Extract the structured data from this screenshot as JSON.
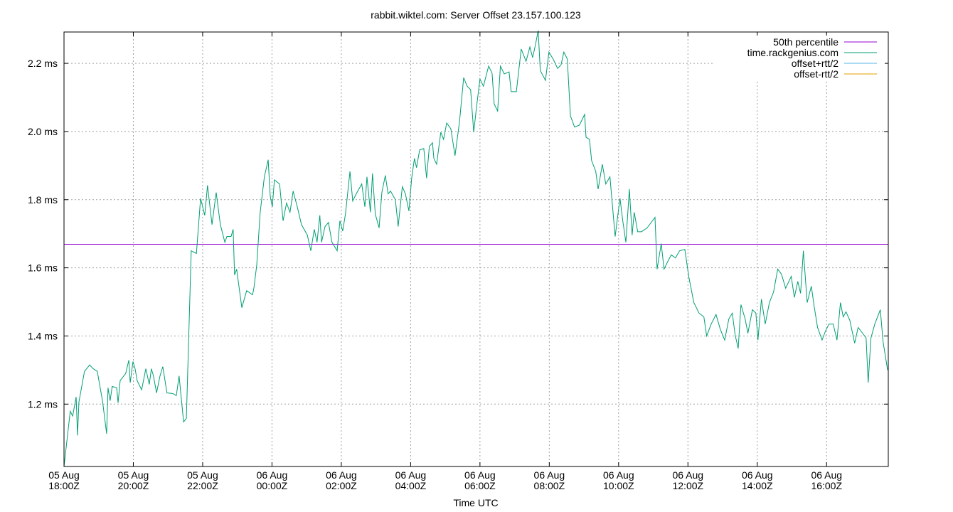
{
  "chart_data": {
    "type": "line",
    "title": "rabbit.wiktel.com: Server Offset 23.157.100.123",
    "xlabel": "Time UTC",
    "xlim": [
      0,
      23.78
    ],
    "ylim": [
      1.017,
      2.292
    ],
    "xticks": [
      {
        "value": 0,
        "label": "05 Aug\n18:00Z"
      },
      {
        "value": 2,
        "label": "05 Aug\n20:00Z"
      },
      {
        "value": 4,
        "label": "05 Aug\n22:00Z"
      },
      {
        "value": 6,
        "label": "06 Aug\n00:00Z"
      },
      {
        "value": 8,
        "label": "06 Aug\n02:00Z"
      },
      {
        "value": 10,
        "label": "06 Aug\n04:00Z"
      },
      {
        "value": 12,
        "label": "06 Aug\n06:00Z"
      },
      {
        "value": 14,
        "label": "06 Aug\n08:00Z"
      },
      {
        "value": 16,
        "label": "06 Aug\n10:00Z"
      },
      {
        "value": 18,
        "label": "06 Aug\n12:00Z"
      },
      {
        "value": 20,
        "label": "06 Aug\n14:00Z"
      },
      {
        "value": 22,
        "label": "06 Aug\n16:00Z"
      }
    ],
    "yticks": [
      {
        "value": 1.2,
        "label": "1.2 ms"
      },
      {
        "value": 1.4,
        "label": "1.4 ms"
      },
      {
        "value": 1.6,
        "label": "1.6 ms"
      },
      {
        "value": 1.8,
        "label": "1.8 ms"
      },
      {
        "value": 2.0,
        "label": "2.0 ms"
      },
      {
        "value": 2.2,
        "label": "2.2 ms"
      }
    ],
    "grid": true,
    "legend": "top-right",
    "percentile": {
      "name": "50th percentile",
      "color": "#9400d3",
      "value": 1.669
    },
    "x": [
      0,
      0.06,
      0.18,
      0.25,
      0.35,
      0.39,
      0.43,
      0.59,
      0.74,
      0.84,
      0.96,
      1.11,
      1.23,
      1.27,
      1.33,
      1.39,
      1.52,
      1.56,
      1.62,
      1.78,
      1.87,
      1.91,
      1.99,
      2.05,
      2.11,
      2.24,
      2.36,
      2.46,
      2.52,
      2.58,
      2.67,
      2.77,
      2.85,
      2.97,
      3.14,
      3.24,
      3.32,
      3.45,
      3.53,
      3.67,
      3.82,
      3.94,
      4.06,
      4.14,
      4.27,
      4.39,
      4.51,
      4.64,
      4.7,
      4.82,
      4.88,
      4.92,
      4.98,
      5.13,
      5.27,
      5.44,
      5.48,
      5.56,
      5.66,
      5.78,
      5.89,
      5.95,
      6.01,
      6.07,
      6.22,
      6.32,
      6.42,
      6.52,
      6.61,
      6.73,
      6.85,
      7.02,
      7.12,
      7.22,
      7.3,
      7.38,
      7.43,
      7.53,
      7.63,
      7.73,
      7.88,
      7.96,
      8.04,
      8.12,
      8.25,
      8.33,
      8.43,
      8.59,
      8.68,
      8.74,
      8.84,
      8.9,
      8.98,
      9.09,
      9.17,
      9.27,
      9.35,
      9.42,
      9.56,
      9.64,
      9.76,
      9.85,
      9.95,
      10.03,
      10.11,
      10.17,
      10.26,
      10.38,
      10.46,
      10.54,
      10.63,
      10.67,
      10.75,
      10.87,
      10.95,
      11.04,
      11.16,
      11.28,
      11.41,
      11.53,
      11.63,
      11.73,
      11.82,
      11.9,
      12.0,
      12.1,
      12.25,
      12.35,
      12.41,
      12.51,
      12.59,
      12.7,
      12.84,
      12.9,
      13.05,
      13.19,
      13.33,
      13.44,
      13.52,
      13.6,
      13.68,
      13.74,
      13.89,
      13.99,
      14.11,
      14.24,
      14.34,
      14.42,
      14.52,
      14.61,
      14.73,
      14.87,
      15.02,
      15.06,
      15.16,
      15.22,
      15.34,
      15.41,
      15.53,
      15.63,
      15.75,
      15.9,
      16.04,
      16.12,
      16.21,
      16.31,
      16.39,
      16.45,
      16.55,
      16.66,
      16.82,
      16.94,
      17.05,
      17.11,
      17.23,
      17.31,
      17.44,
      17.52,
      17.64,
      17.76,
      17.91,
      18.03,
      18.17,
      18.32,
      18.46,
      18.54,
      18.67,
      18.81,
      18.93,
      19.06,
      19.18,
      19.28,
      19.36,
      19.45,
      19.53,
      19.65,
      19.73,
      19.86,
      19.96,
      20.02,
      20.12,
      20.23,
      20.35,
      20.47,
      20.59,
      20.7,
      20.82,
      20.98,
      21.07,
      21.17,
      21.25,
      21.33,
      21.44,
      21.56,
      21.64,
      21.74,
      21.87,
      21.97,
      22.07,
      22.19,
      22.3,
      22.4,
      22.48,
      22.56,
      22.67,
      22.81,
      22.91,
      23.04,
      23.14,
      23.2,
      23.28,
      23.39,
      23.55,
      23.63,
      23.76
    ],
    "series": [
      {
        "name": "time.rackgenius.com",
        "color": "#009e73",
        "values": [
          1.017,
          1.071,
          1.179,
          1.165,
          1.221,
          1.108,
          1.206,
          1.296,
          1.315,
          1.304,
          1.296,
          1.21,
          1.113,
          1.248,
          1.21,
          1.252,
          1.248,
          1.204,
          1.269,
          1.29,
          1.329,
          1.263,
          1.325,
          1.304,
          1.269,
          1.242,
          1.304,
          1.258,
          1.304,
          1.283,
          1.233,
          1.283,
          1.31,
          1.233,
          1.231,
          1.225,
          1.283,
          1.148,
          1.158,
          1.65,
          1.642,
          1.804,
          1.754,
          1.842,
          1.727,
          1.821,
          1.727,
          1.675,
          1.692,
          1.692,
          1.713,
          1.579,
          1.596,
          1.483,
          1.533,
          1.521,
          1.542,
          1.608,
          1.763,
          1.867,
          1.917,
          1.81,
          1.779,
          1.858,
          1.846,
          1.738,
          1.79,
          1.763,
          1.825,
          1.779,
          1.727,
          1.696,
          1.65,
          1.713,
          1.675,
          1.754,
          1.675,
          1.721,
          1.733,
          1.675,
          1.65,
          1.738,
          1.708,
          1.758,
          1.883,
          1.796,
          1.817,
          1.846,
          1.779,
          1.867,
          1.763,
          1.877,
          1.758,
          1.717,
          1.821,
          1.871,
          1.817,
          1.825,
          1.8,
          1.721,
          1.838,
          1.817,
          1.767,
          1.863,
          1.921,
          1.894,
          1.946,
          1.95,
          1.863,
          1.956,
          1.967,
          1.921,
          1.904,
          1.998,
          1.977,
          2.025,
          2.008,
          1.929,
          2.029,
          2.158,
          2.133,
          2.123,
          1.998,
          2.071,
          2.154,
          2.133,
          2.192,
          2.171,
          2.081,
          2.06,
          2.192,
          2.169,
          2.175,
          2.117,
          2.117,
          2.242,
          2.206,
          2.248,
          2.217,
          2.254,
          2.296,
          2.179,
          2.15,
          2.233,
          2.213,
          2.185,
          2.196,
          2.233,
          2.213,
          2.046,
          2.013,
          2.019,
          2.05,
          1.983,
          1.977,
          1.915,
          1.883,
          1.831,
          1.904,
          1.846,
          1.867,
          1.692,
          1.804,
          1.738,
          1.675,
          1.831,
          1.696,
          1.763,
          1.706,
          1.706,
          1.717,
          1.733,
          1.748,
          1.596,
          1.671,
          1.596,
          1.623,
          1.638,
          1.629,
          1.65,
          1.654,
          1.571,
          1.498,
          1.467,
          1.456,
          1.4,
          1.435,
          1.463,
          1.421,
          1.388,
          1.45,
          1.467,
          1.404,
          1.363,
          1.492,
          1.45,
          1.408,
          1.477,
          1.467,
          1.388,
          1.508,
          1.435,
          1.498,
          1.529,
          1.596,
          1.581,
          1.54,
          1.575,
          1.513,
          1.56,
          1.525,
          1.65,
          1.498,
          1.546,
          1.488,
          1.425,
          1.388,
          1.415,
          1.435,
          1.435,
          1.388,
          1.498,
          1.456,
          1.471,
          1.446,
          1.379,
          1.425,
          1.408,
          1.394,
          1.263,
          1.394,
          1.435,
          1.477,
          1.383,
          1.3
        ]
      },
      {
        "name": "offset+rtt/2",
        "color": "#56b4e9"
      },
      {
        "name": "offset-rtt/2",
        "color": "#e69f00"
      }
    ]
  }
}
